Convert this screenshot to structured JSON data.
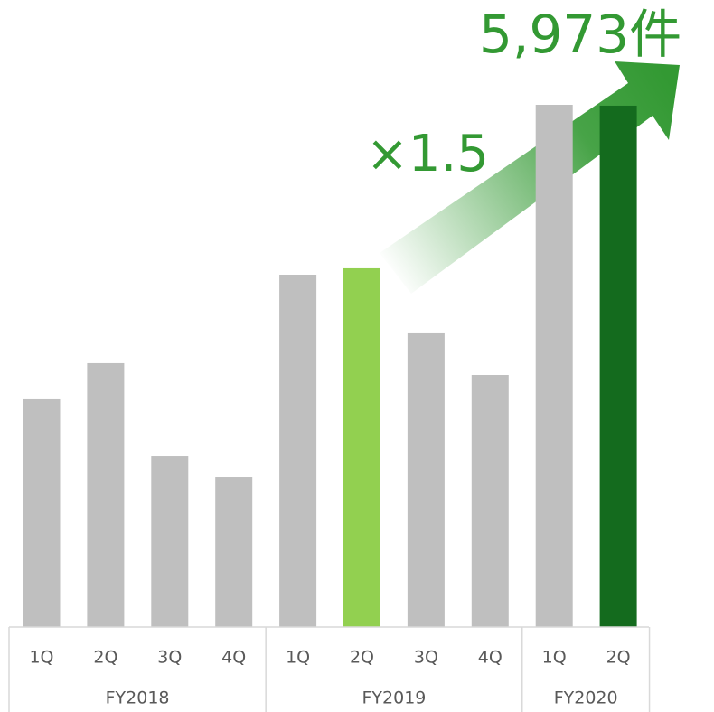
{
  "chart_data": {
    "type": "bar",
    "groups": [
      {
        "name": "FY2018",
        "categories": [
          "1Q",
          "2Q",
          "3Q",
          "4Q"
        ]
      },
      {
        "name": "FY2019",
        "categories": [
          "1Q",
          "2Q",
          "3Q",
          "4Q"
        ]
      },
      {
        "name": "FY2020",
        "categories": [
          "1Q",
          "2Q"
        ]
      }
    ],
    "values": [
      2609,
      3023,
      1956,
      1718,
      4037,
      4110,
      3375,
      2888,
      5983,
      5973
    ],
    "colors": [
      "#bfbfbf",
      "#bfbfbf",
      "#bfbfbf",
      "#bfbfbf",
      "#bfbfbf",
      "#92d050",
      "#bfbfbf",
      "#bfbfbf",
      "#bfbfbf",
      "#146b1e"
    ],
    "value_labels": [
      null,
      null,
      null,
      null,
      null,
      null,
      null,
      null,
      null,
      "5,973件"
    ],
    "annotations": [
      "×1.5"
    ]
  }
}
